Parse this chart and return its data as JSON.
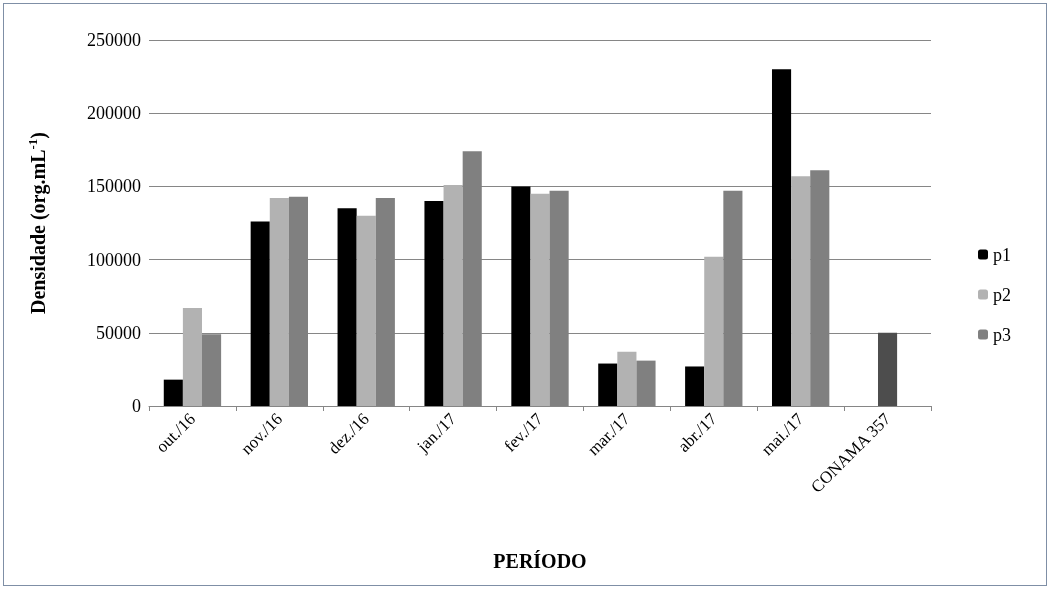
{
  "chart_data": {
    "type": "bar",
    "xlabel": "PERÍODO",
    "ylabel": "Densidade (org.mL$^{-1}$)",
    "categories": [
      "out./16",
      "nov./16",
      "dez./16",
      "jan./17",
      "fev./17",
      "mar./17",
      "abr./17",
      "mai./17",
      "CONAMA 357"
    ],
    "series": [
      {
        "name": "p1",
        "color": "#000000",
        "values": [
          18000,
          126000,
          135000,
          140000,
          150000,
          29000,
          27000,
          230000,
          null
        ]
      },
      {
        "name": "p2",
        "color": "#b2b2b2",
        "values": [
          67000,
          142000,
          130000,
          151000,
          145000,
          37000,
          102000,
          157000,
          null
        ]
      },
      {
        "name": "p3",
        "color": "#808080",
        "values": [
          49000,
          143000,
          142000,
          174000,
          147000,
          31000,
          147000,
          161000,
          null
        ]
      },
      {
        "color": "#4d4d4d",
        "values": [
          null,
          null,
          null,
          null,
          null,
          null,
          null,
          null,
          50000
        ]
      }
    ],
    "ylim": [
      0,
      250000
    ],
    "yticks": [
      0,
      50000,
      100000,
      150000,
      200000,
      250000
    ],
    "grid": "y",
    "legend": "right"
  }
}
